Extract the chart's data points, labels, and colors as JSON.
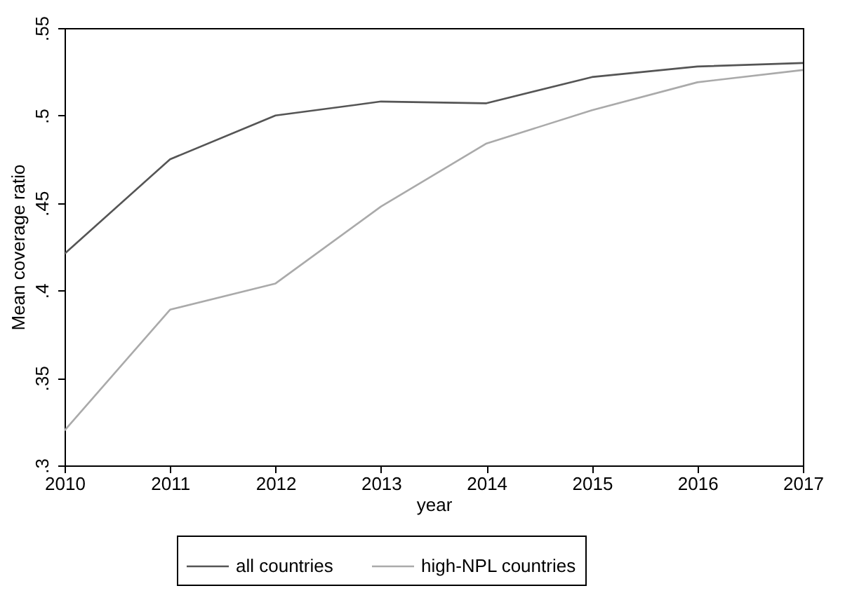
{
  "chart_data": {
    "type": "line",
    "xlabel": "year",
    "ylabel": "Mean coverage ratio",
    "x": [
      2010,
      2011,
      2012,
      2013,
      2014,
      2015,
      2016,
      2017
    ],
    "series": [
      {
        "name": "all countries",
        "color": "#555555",
        "values": [
          0.421,
          0.475,
          0.5,
          0.508,
          0.507,
          0.522,
          0.528,
          0.53
        ]
      },
      {
        "name": "high-NPL countries",
        "color": "#aaaaaa",
        "values": [
          0.32,
          0.389,
          0.404,
          0.448,
          0.484,
          0.503,
          0.519,
          0.526
        ]
      }
    ],
    "xlim": [
      2010,
      2017
    ],
    "xticks": [
      2010,
      2011,
      2012,
      2013,
      2014,
      2015,
      2016,
      2017
    ],
    "ylim": [
      0.3,
      0.55
    ],
    "yticks": [
      {
        "value": 0.3,
        "label": ".3"
      },
      {
        "value": 0.35,
        "label": ".35"
      },
      {
        "value": 0.4,
        "label": ".4"
      },
      {
        "value": 0.45,
        "label": ".45"
      },
      {
        "value": 0.5,
        "label": ".5"
      },
      {
        "value": 0.55,
        "label": ".55"
      }
    ],
    "grid": false,
    "legend": "bottom",
    "marker": "none",
    "line_style": "solid"
  }
}
